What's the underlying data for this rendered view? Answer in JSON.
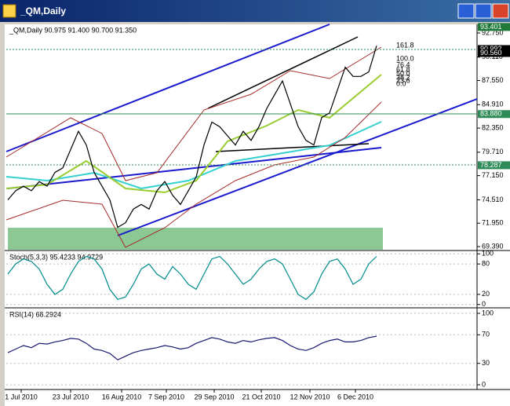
{
  "window": {
    "title": "_QM,Daily"
  },
  "main": {
    "header": "_QM,Daily  90.975 91.400 90.700 91.350",
    "ylim": [
      69.05,
      93.52
    ],
    "yticks": [
      {
        "value": 92.75,
        "label": "92.750"
      },
      {
        "value": 90.11,
        "label": "90.110"
      },
      {
        "value": 87.55,
        "label": "87.550"
      },
      {
        "value": 84.91,
        "label": "84.910"
      },
      {
        "value": 82.35,
        "label": "82.350"
      },
      {
        "value": 79.71,
        "label": "79.710"
      },
      {
        "value": 77.15,
        "label": "77.150"
      },
      {
        "value": 74.51,
        "label": "74.510"
      },
      {
        "value": 71.95,
        "label": "71.950"
      },
      {
        "value": 69.39,
        "label": "69.390"
      }
    ],
    "markers": [
      {
        "value": 93.401,
        "label": "93.401",
        "color": "#1f7a3a"
      },
      {
        "value": 90.992,
        "label": "90.992",
        "color": "#000000"
      },
      {
        "value": 90.56,
        "label": "90.560",
        "color": "#000000"
      },
      {
        "value": 83.88,
        "label": "83.880",
        "color": "#2e8b57"
      },
      {
        "value": 78.287,
        "label": "78.287",
        "color": "#2e8b57"
      }
    ],
    "fib_labels": [
      "161.8",
      "100.0",
      "76.4",
      "61.8",
      "50.0",
      "38.2",
      "23.6",
      "0.0"
    ],
    "close": [
      74.5,
      75.5,
      76,
      75.5,
      76.5,
      76,
      77.5,
      78,
      80,
      82,
      80.5,
      77.5,
      76,
      74.5,
      71.5,
      72,
      73.5,
      74,
      73.5,
      75.5,
      76.5,
      75,
      74,
      75.5,
      77,
      80.5,
      83,
      82.5,
      81.5,
      80.5,
      82,
      81,
      82.5,
      84.5,
      86,
      87.5,
      85,
      82.5,
      81,
      80.5,
      83.5,
      84,
      86.5,
      89,
      88,
      88,
      88.5,
      91.35
    ]
  },
  "stoch": {
    "header": "Stoch(5,3,3) 95.4233 94.9729",
    "ylim": [
      -5,
      105
    ],
    "yticks": [
      100,
      80,
      20,
      0
    ],
    "values": [
      60,
      80,
      90,
      85,
      70,
      40,
      20,
      30,
      60,
      85,
      95,
      90,
      70,
      30,
      10,
      15,
      40,
      70,
      80,
      60,
      50,
      75,
      60,
      40,
      30,
      60,
      90,
      95,
      80,
      60,
      40,
      50,
      70,
      85,
      90,
      80,
      50,
      20,
      10,
      25,
      60,
      85,
      90,
      70,
      40,
      50,
      80,
      95
    ]
  },
  "rsi": {
    "header": "RSI(14) 68.2924",
    "ylim": [
      -2.2,
      106.6
    ],
    "yticks": [
      100,
      70,
      30,
      0
    ],
    "values": [
      45,
      50,
      55,
      52,
      58,
      57,
      60,
      62,
      65,
      64,
      58,
      50,
      48,
      44,
      35,
      40,
      45,
      48,
      50,
      52,
      55,
      53,
      50,
      52,
      58,
      62,
      66,
      64,
      60,
      58,
      62,
      60,
      63,
      65,
      66,
      62,
      55,
      50,
      48,
      52,
      58,
      62,
      64,
      60,
      60,
      62,
      66,
      68
    ]
  },
  "dates": [
    "1 Jul 2010",
    "23 Jul 2010",
    "16 Aug 2010",
    "7 Sep 2010",
    "29 Sep 2010",
    "21 Oct 2010",
    "12 Nov 2010",
    "6 Dec 2010"
  ]
}
